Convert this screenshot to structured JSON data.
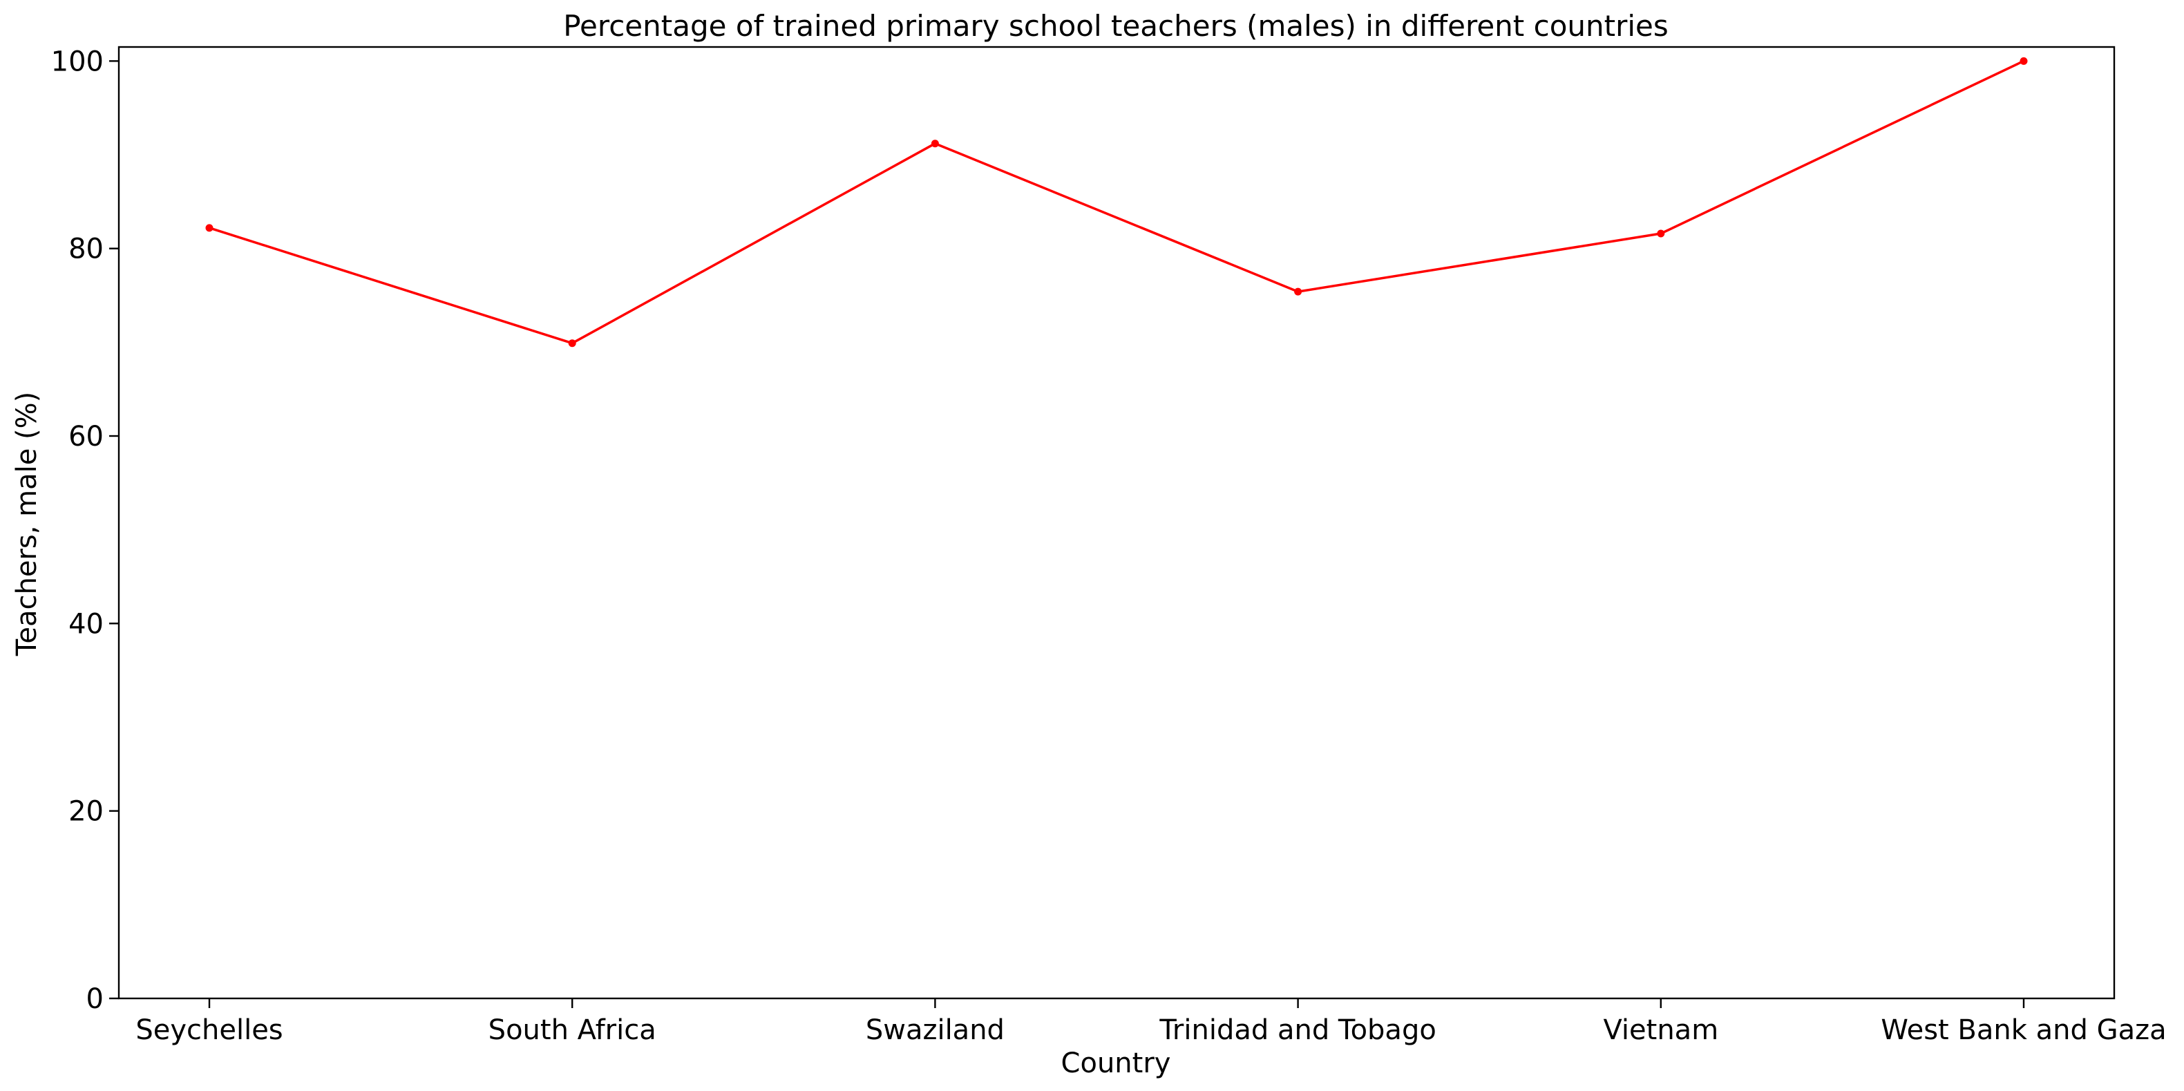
{
  "chart_data": {
    "type": "line",
    "title": "Percentage of trained primary school teachers (males) in different countries",
    "xlabel": "Country",
    "ylabel": "Teachers, male (%)",
    "categories": [
      "Seychelles",
      "South Africa",
      "Swaziland",
      "Trinidad and Tobago",
      "Vietnam",
      "West Bank and Gaza"
    ],
    "series": [
      {
        "values": [
          82.2,
          69.9,
          91.2,
          75.4,
          81.6,
          100.0
        ],
        "color": "#ff0000",
        "marker": "circle"
      }
    ],
    "ylim": [
      0,
      101.5
    ],
    "yticks": [
      0,
      20,
      40,
      60,
      80,
      100
    ],
    "grid": false,
    "legend": "none"
  }
}
